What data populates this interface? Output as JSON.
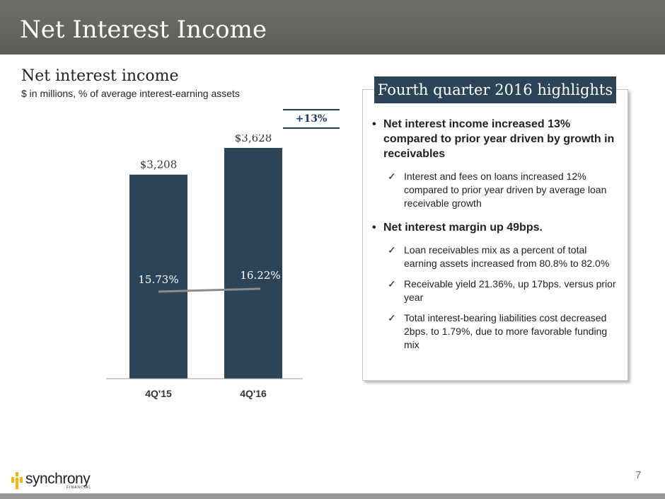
{
  "header": {
    "title": "Net Interest Income"
  },
  "chart_title": "Net interest income",
  "chart_subtitle": "$ in millions, % of average interest-earning assets",
  "growth_label": "+13%",
  "chart_data": {
    "type": "bar",
    "categories": [
      "4Q'15",
      "4Q'16"
    ],
    "values": [
      3208,
      3628
    ],
    "value_labels": [
      "$3,208",
      "$3,628"
    ],
    "bar_color": "#2c4457",
    "ylim": [
      0,
      3750
    ],
    "overlay_line": {
      "values": [
        15.73,
        16.22
      ],
      "labels": [
        "15.73%",
        "16.22%"
      ],
      "color": "#8c8c8c"
    },
    "xlabel": "",
    "ylabel": ""
  },
  "panel": {
    "title": "Fourth quarter 2016 highlights",
    "bullets": [
      {
        "text": "Net interest income increased 13% compared to prior year driven by growth in receivables",
        "subs": [
          "Interest and fees on loans increased 12% compared to prior year driven by average loan receivable growth"
        ]
      },
      {
        "text": "Net interest margin up 49bps.",
        "subs": [
          "Loan receivables mix as a percent of total earning assets increased from 80.8% to 82.0%",
          "Receivable yield 21.36%, up 17bps. versus prior year",
          "Total interest-bearing liabilities cost decreased 2bps. to 1.79%, due to more favorable funding mix"
        ]
      }
    ]
  },
  "footer": {
    "page_number": "7",
    "logo_text": "synchrony",
    "logo_sub": "FINANCIAL"
  },
  "colors": {
    "header_bg": "#5f5f5b",
    "accent_navy": "#1f3a66",
    "bar": "#2c4457"
  }
}
